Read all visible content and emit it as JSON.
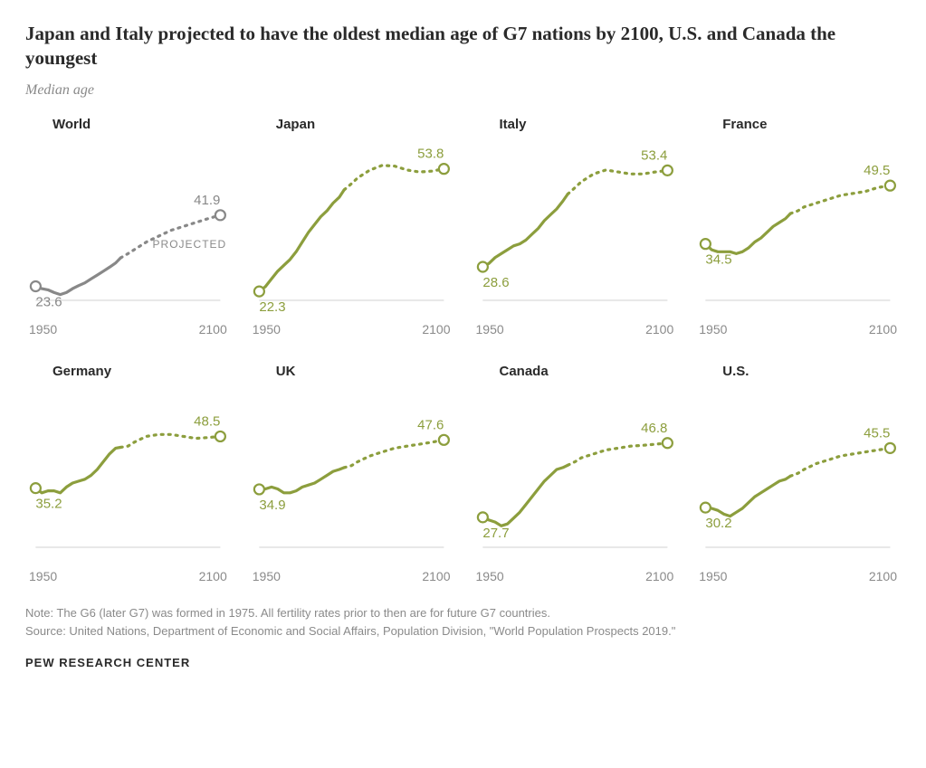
{
  "title": "Japan and Italy projected to have the oldest median age of G7 nations by 2100, U.S. and Canada the youngest",
  "subtitle": "Median age",
  "projected_label": "PROJECTED",
  "xaxis": {
    "start": "1950",
    "end": "2100"
  },
  "y_domain": {
    "min": 20,
    "max": 60
  },
  "split_year": 2019,
  "x_domain": {
    "min": 1950,
    "max": 2100
  },
  "colors": {
    "world": "#888888",
    "country": "#8c9e3d",
    "text_muted": "#8a8a8a",
    "baseline": "#d0d0d0",
    "marker_fill": "#ffffff"
  },
  "line_style": {
    "solid_width": 3.2,
    "dotted_width": 3.2,
    "dotted_dash": "2 6",
    "marker_radius": 5.5,
    "marker_stroke": 2.2
  },
  "panels": [
    {
      "name": "World",
      "color_key": "world",
      "start_value": "23.6",
      "end_value": "41.9",
      "show_projected_label": true,
      "series": [
        {
          "x": 1950,
          "y": 23.6
        },
        {
          "x": 1955,
          "y": 23.0
        },
        {
          "x": 1960,
          "y": 22.7
        },
        {
          "x": 1965,
          "y": 22.0
        },
        {
          "x": 1970,
          "y": 21.5
        },
        {
          "x": 1975,
          "y": 22.0
        },
        {
          "x": 1980,
          "y": 23.0
        },
        {
          "x": 1985,
          "y": 23.8
        },
        {
          "x": 1990,
          "y": 24.5
        },
        {
          "x": 1995,
          "y": 25.5
        },
        {
          "x": 2000,
          "y": 26.5
        },
        {
          "x": 2005,
          "y": 27.5
        },
        {
          "x": 2010,
          "y": 28.5
        },
        {
          "x": 2015,
          "y": 29.6
        },
        {
          "x": 2019,
          "y": 30.9
        },
        {
          "x": 2025,
          "y": 32.0
        },
        {
          "x": 2030,
          "y": 33.0
        },
        {
          "x": 2040,
          "y": 35.0
        },
        {
          "x": 2050,
          "y": 36.5
        },
        {
          "x": 2060,
          "y": 38.0
        },
        {
          "x": 2070,
          "y": 39.0
        },
        {
          "x": 2080,
          "y": 40.0
        },
        {
          "x": 2090,
          "y": 41.0
        },
        {
          "x": 2100,
          "y": 41.9
        }
      ]
    },
    {
      "name": "Japan",
      "color_key": "country",
      "start_value": "22.3",
      "end_value": "53.8",
      "series": [
        {
          "x": 1950,
          "y": 22.3
        },
        {
          "x": 1955,
          "y": 23.5
        },
        {
          "x": 1960,
          "y": 25.5
        },
        {
          "x": 1965,
          "y": 27.5
        },
        {
          "x": 1970,
          "y": 29.0
        },
        {
          "x": 1975,
          "y": 30.5
        },
        {
          "x": 1980,
          "y": 32.5
        },
        {
          "x": 1985,
          "y": 35.0
        },
        {
          "x": 1990,
          "y": 37.5
        },
        {
          "x": 1995,
          "y": 39.5
        },
        {
          "x": 2000,
          "y": 41.5
        },
        {
          "x": 2005,
          "y": 43.0
        },
        {
          "x": 2010,
          "y": 45.0
        },
        {
          "x": 2015,
          "y": 46.5
        },
        {
          "x": 2019,
          "y": 48.4
        },
        {
          "x": 2025,
          "y": 50.0
        },
        {
          "x": 2030,
          "y": 51.5
        },
        {
          "x": 2040,
          "y": 53.5
        },
        {
          "x": 2050,
          "y": 54.7
        },
        {
          "x": 2060,
          "y": 54.5
        },
        {
          "x": 2070,
          "y": 53.5
        },
        {
          "x": 2080,
          "y": 53.0
        },
        {
          "x": 2090,
          "y": 53.2
        },
        {
          "x": 2100,
          "y": 53.8
        }
      ]
    },
    {
      "name": "Italy",
      "color_key": "country",
      "start_value": "28.6",
      "end_value": "53.4",
      "series": [
        {
          "x": 1950,
          "y": 28.6
        },
        {
          "x": 1955,
          "y": 29.5
        },
        {
          "x": 1960,
          "y": 31.0
        },
        {
          "x": 1965,
          "y": 32.0
        },
        {
          "x": 1970,
          "y": 33.0
        },
        {
          "x": 1975,
          "y": 34.0
        },
        {
          "x": 1980,
          "y": 34.5
        },
        {
          "x": 1985,
          "y": 35.5
        },
        {
          "x": 1990,
          "y": 37.0
        },
        {
          "x": 1995,
          "y": 38.5
        },
        {
          "x": 2000,
          "y": 40.5
        },
        {
          "x": 2005,
          "y": 42.0
        },
        {
          "x": 2010,
          "y": 43.5
        },
        {
          "x": 2015,
          "y": 45.5
        },
        {
          "x": 2019,
          "y": 47.3
        },
        {
          "x": 2025,
          "y": 49.0
        },
        {
          "x": 2030,
          "y": 50.5
        },
        {
          "x": 2040,
          "y": 52.5
        },
        {
          "x": 2050,
          "y": 53.5
        },
        {
          "x": 2060,
          "y": 53.0
        },
        {
          "x": 2070,
          "y": 52.5
        },
        {
          "x": 2080,
          "y": 52.5
        },
        {
          "x": 2090,
          "y": 53.0
        },
        {
          "x": 2100,
          "y": 53.4
        }
      ]
    },
    {
      "name": "France",
      "color_key": "country",
      "start_value": "34.5",
      "end_value": "49.5",
      "series": [
        {
          "x": 1950,
          "y": 34.5
        },
        {
          "x": 1955,
          "y": 33.0
        },
        {
          "x": 1960,
          "y": 32.5
        },
        {
          "x": 1965,
          "y": 32.5
        },
        {
          "x": 1970,
          "y": 32.5
        },
        {
          "x": 1975,
          "y": 32.0
        },
        {
          "x": 1980,
          "y": 32.5
        },
        {
          "x": 1985,
          "y": 33.5
        },
        {
          "x": 1990,
          "y": 35.0
        },
        {
          "x": 1995,
          "y": 36.0
        },
        {
          "x": 2000,
          "y": 37.5
        },
        {
          "x": 2005,
          "y": 39.0
        },
        {
          "x": 2010,
          "y": 40.0
        },
        {
          "x": 2015,
          "y": 41.0
        },
        {
          "x": 2019,
          "y": 42.3
        },
        {
          "x": 2025,
          "y": 43.0
        },
        {
          "x": 2030,
          "y": 44.0
        },
        {
          "x": 2040,
          "y": 45.0
        },
        {
          "x": 2050,
          "y": 46.0
        },
        {
          "x": 2060,
          "y": 47.0
        },
        {
          "x": 2070,
          "y": 47.5
        },
        {
          "x": 2080,
          "y": 48.0
        },
        {
          "x": 2090,
          "y": 49.0
        },
        {
          "x": 2100,
          "y": 49.5
        }
      ]
    },
    {
      "name": "Germany",
      "color_key": "country",
      "start_value": "35.2",
      "end_value": "48.5",
      "series": [
        {
          "x": 1950,
          "y": 35.2
        },
        {
          "x": 1955,
          "y": 34.0
        },
        {
          "x": 1960,
          "y": 34.5
        },
        {
          "x": 1965,
          "y": 34.5
        },
        {
          "x": 1970,
          "y": 34.0
        },
        {
          "x": 1975,
          "y": 35.5
        },
        {
          "x": 1980,
          "y": 36.5
        },
        {
          "x": 1985,
          "y": 37.0
        },
        {
          "x": 1990,
          "y": 37.5
        },
        {
          "x": 1995,
          "y": 38.5
        },
        {
          "x": 2000,
          "y": 40.0
        },
        {
          "x": 2005,
          "y": 42.0
        },
        {
          "x": 2010,
          "y": 44.0
        },
        {
          "x": 2015,
          "y": 45.5
        },
        {
          "x": 2019,
          "y": 45.7
        },
        {
          "x": 2025,
          "y": 46.0
        },
        {
          "x": 2030,
          "y": 47.0
        },
        {
          "x": 2040,
          "y": 48.5
        },
        {
          "x": 2050,
          "y": 49.0
        },
        {
          "x": 2060,
          "y": 49.0
        },
        {
          "x": 2070,
          "y": 48.5
        },
        {
          "x": 2080,
          "y": 48.0
        },
        {
          "x": 2090,
          "y": 48.2
        },
        {
          "x": 2100,
          "y": 48.5
        }
      ]
    },
    {
      "name": "UK",
      "color_key": "country",
      "start_value": "34.9",
      "end_value": "47.6",
      "series": [
        {
          "x": 1950,
          "y": 34.9
        },
        {
          "x": 1955,
          "y": 35.0
        },
        {
          "x": 1960,
          "y": 35.5
        },
        {
          "x": 1965,
          "y": 35.0
        },
        {
          "x": 1970,
          "y": 34.0
        },
        {
          "x": 1975,
          "y": 34.0
        },
        {
          "x": 1980,
          "y": 34.5
        },
        {
          "x": 1985,
          "y": 35.5
        },
        {
          "x": 1990,
          "y": 36.0
        },
        {
          "x": 1995,
          "y": 36.5
        },
        {
          "x": 2000,
          "y": 37.5
        },
        {
          "x": 2005,
          "y": 38.5
        },
        {
          "x": 2010,
          "y": 39.5
        },
        {
          "x": 2015,
          "y": 40.0
        },
        {
          "x": 2019,
          "y": 40.5
        },
        {
          "x": 2025,
          "y": 41.0
        },
        {
          "x": 2030,
          "y": 42.0
        },
        {
          "x": 2040,
          "y": 43.5
        },
        {
          "x": 2050,
          "y": 44.5
        },
        {
          "x": 2060,
          "y": 45.5
        },
        {
          "x": 2070,
          "y": 46.0
        },
        {
          "x": 2080,
          "y": 46.5
        },
        {
          "x": 2090,
          "y": 47.0
        },
        {
          "x": 2100,
          "y": 47.6
        }
      ]
    },
    {
      "name": "Canada",
      "color_key": "country",
      "start_value": "27.7",
      "end_value": "46.8",
      "series": [
        {
          "x": 1950,
          "y": 27.7
        },
        {
          "x": 1955,
          "y": 27.0
        },
        {
          "x": 1960,
          "y": 26.5
        },
        {
          "x": 1965,
          "y": 25.5
        },
        {
          "x": 1970,
          "y": 26.0
        },
        {
          "x": 1975,
          "y": 27.5
        },
        {
          "x": 1980,
          "y": 29.0
        },
        {
          "x": 1985,
          "y": 31.0
        },
        {
          "x": 1990,
          "y": 33.0
        },
        {
          "x": 1995,
          "y": 35.0
        },
        {
          "x": 2000,
          "y": 37.0
        },
        {
          "x": 2005,
          "y": 38.5
        },
        {
          "x": 2010,
          "y": 40.0
        },
        {
          "x": 2015,
          "y": 40.5
        },
        {
          "x": 2019,
          "y": 41.1
        },
        {
          "x": 2025,
          "y": 42.0
        },
        {
          "x": 2030,
          "y": 43.0
        },
        {
          "x": 2040,
          "y": 44.0
        },
        {
          "x": 2050,
          "y": 45.0
        },
        {
          "x": 2060,
          "y": 45.5
        },
        {
          "x": 2070,
          "y": 46.0
        },
        {
          "x": 2080,
          "y": 46.2
        },
        {
          "x": 2090,
          "y": 46.5
        },
        {
          "x": 2100,
          "y": 46.8
        }
      ]
    },
    {
      "name": "U.S.",
      "color_key": "country",
      "start_value": "30.2",
      "end_value": "45.5",
      "series": [
        {
          "x": 1950,
          "y": 30.2
        },
        {
          "x": 1955,
          "y": 30.0
        },
        {
          "x": 1960,
          "y": 29.5
        },
        {
          "x": 1965,
          "y": 28.5
        },
        {
          "x": 1970,
          "y": 28.0
        },
        {
          "x": 1975,
          "y": 29.0
        },
        {
          "x": 1980,
          "y": 30.0
        },
        {
          "x": 1985,
          "y": 31.5
        },
        {
          "x": 1990,
          "y": 33.0
        },
        {
          "x": 1995,
          "y": 34.0
        },
        {
          "x": 2000,
          "y": 35.0
        },
        {
          "x": 2005,
          "y": 36.0
        },
        {
          "x": 2010,
          "y": 37.0
        },
        {
          "x": 2015,
          "y": 37.5
        },
        {
          "x": 2019,
          "y": 38.3
        },
        {
          "x": 2025,
          "y": 39.0
        },
        {
          "x": 2030,
          "y": 40.0
        },
        {
          "x": 2040,
          "y": 41.5
        },
        {
          "x": 2050,
          "y": 42.5
        },
        {
          "x": 2060,
          "y": 43.5
        },
        {
          "x": 2070,
          "y": 44.0
        },
        {
          "x": 2080,
          "y": 44.5
        },
        {
          "x": 2090,
          "y": 45.0
        },
        {
          "x": 2100,
          "y": 45.5
        }
      ]
    }
  ],
  "note": "Note: The G6 (later G7) was formed in 1975. All fertility rates prior to then are for future G7 countries.",
  "source": "Source: United Nations, Department of Economic and Social Affairs, Population Division, \"World Population Prospects 2019.\"",
  "attribution": "PEW RESEARCH CENTER"
}
